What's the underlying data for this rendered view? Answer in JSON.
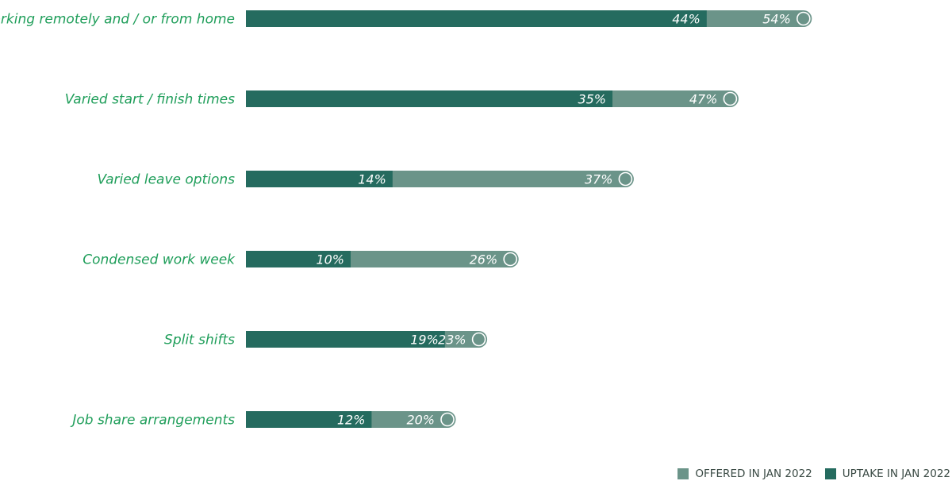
{
  "chart_data": {
    "type": "bar",
    "orientation": "horizontal",
    "stacked": false,
    "categories": [
      "Working remotely and / or from home",
      "Varied start / finish times",
      "Varied leave options",
      "Condensed work week",
      "Split shifts",
      "Job share arrangements"
    ],
    "series": [
      {
        "name": "OFFERED IN JAN 2022",
        "color": "#6b9489",
        "values": [
          54,
          47,
          37,
          26,
          23,
          20
        ]
      },
      {
        "name": "UPTAKE IN JAN 2022",
        "color": "#256b5f",
        "values": [
          44,
          35,
          14,
          10,
          19,
          12
        ]
      }
    ],
    "value_suffix": "%",
    "xlim": [
      0,
      54
    ],
    "grid": false,
    "legend_position": "bottom-right",
    "label_color": "#1f9e5a"
  },
  "legend": {
    "offered_label": "OFFERED IN JAN 2022",
    "uptake_label": "UPTAKE IN JAN 2022",
    "offered_color": "#6b9489",
    "uptake_color": "#256b5f"
  }
}
